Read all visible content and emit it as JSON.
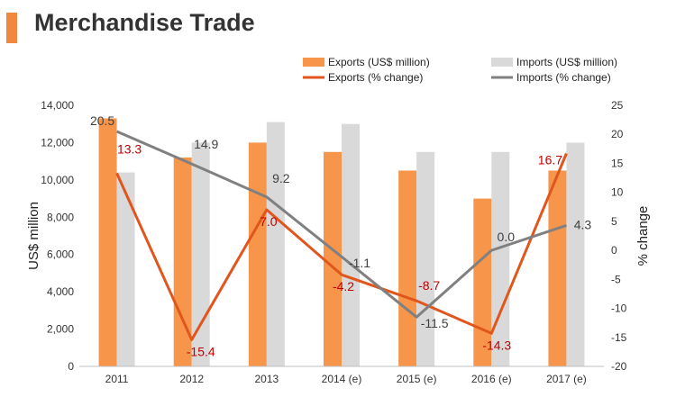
{
  "title": "Merchandise Trade",
  "colors": {
    "accent": "#F0893E",
    "exports_bar": "#F7964A",
    "imports_bar": "#D9D9D9",
    "exports_line": "#E0561D",
    "imports_line": "#808080",
    "exports_label": "#C00000",
    "imports_label": "#404040",
    "axis_text": "#333333",
    "axis_line": "#BFBFBF"
  },
  "chart_data": {
    "type": "bar",
    "categories": [
      "2011",
      "2012",
      "2013",
      "2014 (e)",
      "2015 (e)",
      "2016 (e)",
      "2017 (e)"
    ],
    "ylabel": "US$ million",
    "y2label": "% change",
    "ylim": [
      0,
      14000
    ],
    "y2lim": [
      -20,
      25
    ],
    "yticks": [
      "0",
      "2,000",
      "4,000",
      "6,000",
      "8,000",
      "10,000",
      "12,000",
      "14,000"
    ],
    "y2ticks": [
      "-20",
      "-15",
      "-10",
      "-5",
      "0",
      "5",
      "10",
      "15",
      "20",
      "25"
    ],
    "legend_position": "top-right",
    "series": [
      {
        "name": "Exports (US$ million)",
        "type": "bar",
        "axis": "left",
        "values": [
          13300,
          11200,
          12000,
          11500,
          10500,
          9000,
          10500
        ]
      },
      {
        "name": "Imports (US$ million)",
        "type": "bar",
        "axis": "left",
        "values": [
          10400,
          12000,
          13100,
          13000,
          11500,
          11500,
          12000
        ]
      },
      {
        "name": "Exports (% change)",
        "type": "line",
        "axis": "right",
        "values": [
          13.3,
          -15.4,
          7.0,
          -4.2,
          -8.7,
          -14.3,
          16.7
        ],
        "labels": [
          "13.3",
          "-15.4",
          "7.0",
          "-4.2",
          "-8.7",
          "-14.3",
          "16.7"
        ]
      },
      {
        "name": "Imports (% change)",
        "type": "line",
        "axis": "right",
        "values": [
          20.5,
          14.9,
          9.2,
          -1.1,
          -11.5,
          0.0,
          4.3
        ],
        "labels": [
          "20.5",
          "14.9",
          "9.2",
          "-1.1",
          "-11.5",
          "0.0",
          "4.3"
        ]
      }
    ]
  }
}
